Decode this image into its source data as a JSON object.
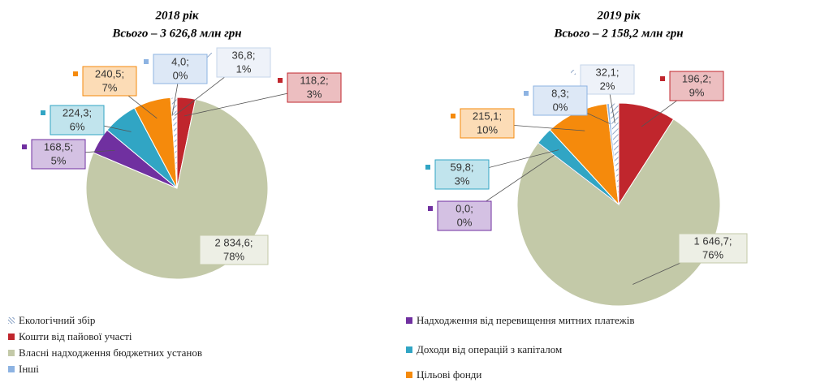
{
  "legend": [
    {
      "name": "Екологічний збір",
      "color": "#c6d5ea"
    },
    {
      "name": "Кошти від пайової участі",
      "color": "#c0262d"
    },
    {
      "name": "Власні надходження бюджетних установ",
      "color": "#c3c9a8"
    },
    {
      "name": "Інші",
      "color": "#8db3e2"
    },
    {
      "name": "Надходження від перевищення митних платежів",
      "color": "#7030a0"
    },
    {
      "name": "Доходи від операцій з капіталом",
      "color": "#31a5c4"
    },
    {
      "name": "Цільові фонди",
      "color": "#f58a0c"
    }
  ],
  "chart_data": [
    {
      "type": "pie",
      "title": "2018 рік",
      "subtitle": "Всього – 3 626,8 млн грн",
      "values": [
        36.8,
        118.2,
        2834.6,
        4.0,
        168.5,
        224.3,
        240.5
      ],
      "value_labels": [
        "36,8;",
        "118,2;",
        "2 834,6;",
        "4,0;",
        "168,5;",
        "224,3;",
        "240,5;"
      ],
      "percents": [
        1,
        3,
        78,
        0,
        5,
        6,
        7
      ],
      "percent_labels": [
        "1%",
        "3%",
        "78%",
        "0%",
        "5%",
        "6%",
        "7%"
      ]
    },
    {
      "type": "pie",
      "title": "2019 рік",
      "subtitle": "Всього – 2 158,2 млн грн",
      "values": [
        32.1,
        196.2,
        1646.7,
        8.3,
        0.0,
        59.8,
        215.1
      ],
      "value_labels": [
        "32,1;",
        "196,2;",
        "1 646,7;",
        "8,3;",
        "0,0;",
        "59,8;",
        "215,1;"
      ],
      "percents": [
        2,
        9,
        76,
        0,
        0,
        3,
        10
      ],
      "percent_labels": [
        "2%",
        "9%",
        "76%",
        "0%",
        "0%",
        "3%",
        "10%"
      ]
    }
  ]
}
